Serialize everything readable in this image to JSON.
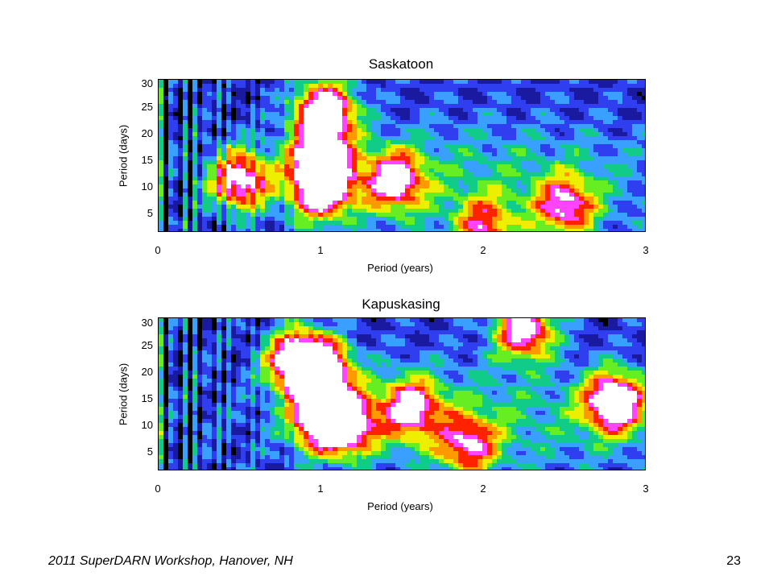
{
  "chart_data": [
    {
      "type": "heatmap",
      "title": "Saskatoon",
      "xlabel": "Period (years)",
      "ylabel": "Period (days)",
      "xlim": [
        0,
        3
      ],
      "ylim": [
        2,
        31
      ],
      "xticks": [
        "0",
        "1",
        "2",
        "3"
      ],
      "yticks": [
        "5",
        "10",
        "15",
        "20",
        "25",
        "30"
      ],
      "hotspots": [
        {
          "x": 1.02,
          "y": 25,
          "amp": 1.0
        },
        {
          "x": 1.0,
          "y": 16,
          "amp": 0.9
        },
        {
          "x": 1.0,
          "y": 10,
          "amp": 0.85
        },
        {
          "x": 0.5,
          "y": 12,
          "amp": 0.8
        },
        {
          "x": 1.45,
          "y": 12,
          "amp": 0.75
        },
        {
          "x": 2.5,
          "y": 7,
          "amp": 0.65
        },
        {
          "x": 2.0,
          "y": 3,
          "amp": 0.55
        }
      ]
    },
    {
      "type": "heatmap",
      "title": "Kapuskasing",
      "xlabel": "Period (years)",
      "ylabel": "Period (days)",
      "xlim": [
        0,
        3
      ],
      "ylim": [
        2,
        31
      ],
      "xticks": [
        "0",
        "1",
        "2",
        "3"
      ],
      "yticks": [
        "5",
        "10",
        "15",
        "20",
        "25",
        "30"
      ],
      "hotspots": [
        {
          "x": 0.85,
          "y": 23,
          "amp": 0.95
        },
        {
          "x": 1.0,
          "y": 21,
          "amp": 0.95
        },
        {
          "x": 1.0,
          "y": 12,
          "amp": 0.85
        },
        {
          "x": 1.15,
          "y": 11,
          "amp": 0.8
        },
        {
          "x": 2.25,
          "y": 29,
          "amp": 0.85
        },
        {
          "x": 2.8,
          "y": 15,
          "amp": 0.95
        },
        {
          "x": 1.55,
          "y": 14,
          "amp": 0.7
        },
        {
          "x": 1.9,
          "y": 7,
          "amp": 0.6
        }
      ]
    }
  ],
  "footer": {
    "text": "2011 SuperDARN Workshop, Hanover, NH",
    "page": "23"
  }
}
